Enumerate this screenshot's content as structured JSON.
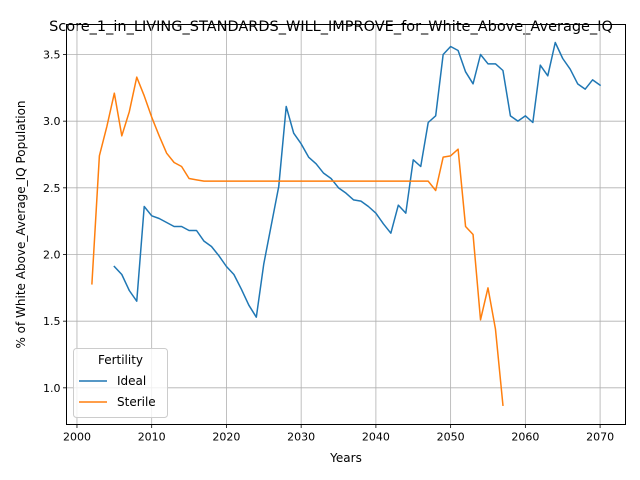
{
  "chart_data": {
    "type": "line",
    "title": "Score_1_in_LIVING_STANDARDS_WILL_IMPROVE_for_White_Above_Average_IQ",
    "xlabel": "Years",
    "ylabel": "% of White Above_Average_IQ Population",
    "xlim": [
      1998.6,
      2073.4
    ],
    "ylim": [
      0.725,
      3.725
    ],
    "xticks": [
      2000,
      2010,
      2020,
      2030,
      2040,
      2050,
      2060,
      2070
    ],
    "yticks": [
      1.0,
      1.5,
      2.0,
      2.5,
      3.0,
      3.5
    ],
    "grid": true,
    "legend": {
      "title": "Fertility",
      "placement": "lower-left"
    },
    "series": [
      {
        "name": "Ideal",
        "color": "#1f77b4",
        "x": [
          2005,
          2006,
          2007,
          2008,
          2009,
          2010,
          2011,
          2012,
          2013,
          2014,
          2015,
          2016,
          2017,
          2018,
          2019,
          2020,
          2021,
          2022,
          2023,
          2024,
          2025,
          2026,
          2027,
          2028,
          2029,
          2030,
          2031,
          2032,
          2033,
          2034,
          2035,
          2036,
          2037,
          2038,
          2039,
          2040,
          2041,
          2042,
          2043,
          2044,
          2045,
          2046,
          2047,
          2048,
          2049,
          2050,
          2051,
          2052,
          2053,
          2054,
          2055,
          2056,
          2057,
          2058,
          2059,
          2060,
          2061,
          2062,
          2063,
          2064,
          2065,
          2066,
          2067,
          2068,
          2069,
          2070
        ],
        "y": [
          1.91,
          1.85,
          1.73,
          1.65,
          2.36,
          2.29,
          2.27,
          2.24,
          2.21,
          2.21,
          2.18,
          2.18,
          2.1,
          2.06,
          1.99,
          1.91,
          1.85,
          1.74,
          1.62,
          1.53,
          1.93,
          2.22,
          2.51,
          3.11,
          2.91,
          2.83,
          2.73,
          2.68,
          2.61,
          2.57,
          2.5,
          2.46,
          2.41,
          2.4,
          2.36,
          2.31,
          2.23,
          2.16,
          2.37,
          2.31,
          2.71,
          2.66,
          2.99,
          3.04,
          3.5,
          3.56,
          3.53,
          3.37,
          3.28,
          3.5,
          3.43,
          3.43,
          3.38,
          3.04,
          3.0,
          3.04,
          2.99,
          3.42,
          3.34,
          3.59,
          3.47,
          3.39,
          3.28,
          3.24,
          3.31,
          3.27
        ]
      },
      {
        "name": "Sterile",
        "color": "#ff7f0e",
        "x": [
          2002,
          2003,
          2004,
          2005,
          2006,
          2007,
          2008,
          2009,
          2010,
          2011,
          2012,
          2013,
          2014,
          2015,
          2016,
          2017,
          2018,
          2019,
          2020,
          2021,
          2022,
          2023,
          2024,
          2025,
          2026,
          2027,
          2028,
          2029,
          2030,
          2031,
          2032,
          2033,
          2034,
          2035,
          2036,
          2037,
          2038,
          2039,
          2040,
          2041,
          2042,
          2043,
          2044,
          2045,
          2046,
          2047,
          2048,
          2049,
          2050,
          2051,
          2052,
          2053,
          2054,
          2055,
          2056,
          2057
        ],
        "y": [
          1.78,
          2.74,
          2.96,
          3.21,
          2.89,
          3.07,
          3.33,
          3.19,
          3.03,
          2.89,
          2.76,
          2.69,
          2.66,
          2.57,
          2.56,
          2.55,
          2.55,
          2.55,
          2.55,
          2.55,
          2.55,
          2.55,
          2.55,
          2.55,
          2.55,
          2.55,
          2.55,
          2.55,
          2.55,
          2.55,
          2.55,
          2.55,
          2.55,
          2.55,
          2.55,
          2.55,
          2.55,
          2.55,
          2.55,
          2.55,
          2.55,
          2.55,
          2.55,
          2.55,
          2.55,
          2.55,
          2.48,
          2.73,
          2.74,
          2.79,
          2.21,
          2.15,
          1.51,
          1.75,
          1.44,
          0.87
        ]
      }
    ]
  }
}
